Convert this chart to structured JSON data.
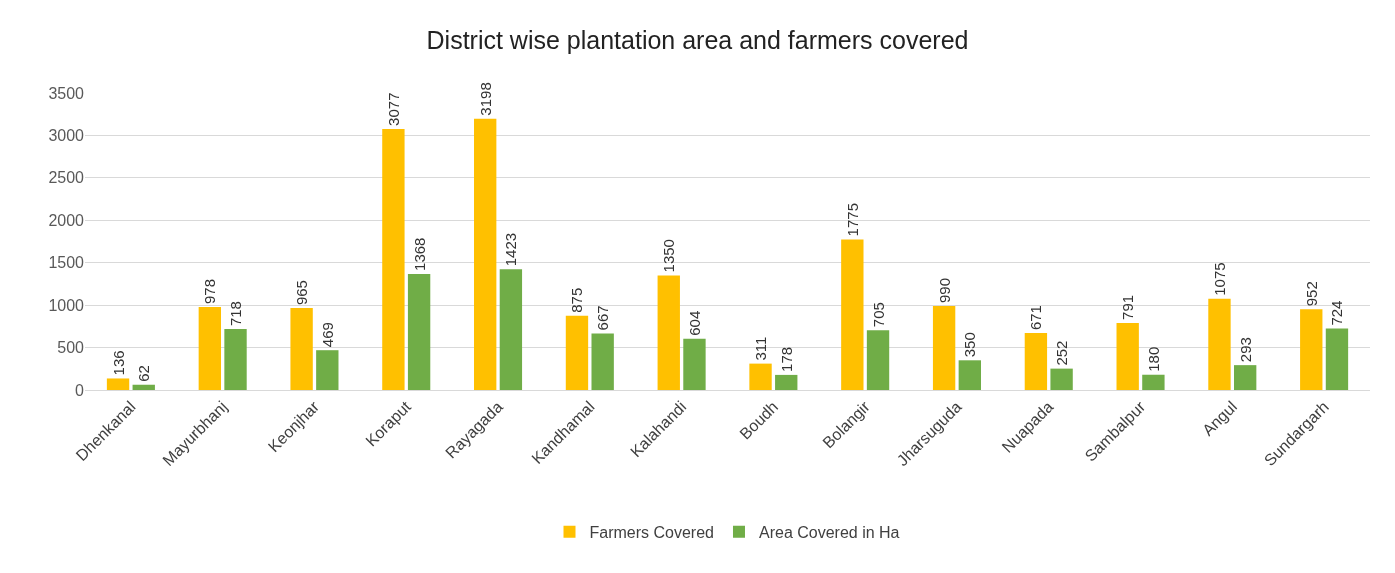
{
  "chart_data": {
    "type": "bar",
    "title": "District wise plantation area and farmers covered",
    "categories": [
      "Dhenkanal",
      "Mayurbhanj",
      "Keonjhar",
      "Koraput",
      "Rayagada",
      "Kandhamal",
      "Kalahandi",
      "Boudh",
      "Bolangir",
      "Jharsuguda",
      "Nuapada",
      "Sambalpur",
      "Angul",
      "Sundargarh"
    ],
    "series": [
      {
        "name": "Farmers Covered",
        "color": "#ffc000",
        "values": [
          136,
          978,
          965,
          3077,
          3198,
          875,
          1350,
          311,
          1775,
          990,
          671,
          791,
          1075,
          952
        ]
      },
      {
        "name": "Area Covered in Ha",
        "color": "#70ad47",
        "values": [
          62,
          718,
          469,
          1368,
          1423,
          667,
          604,
          178,
          705,
          350,
          252,
          180,
          293,
          724
        ]
      }
    ],
    "ylim": [
      0,
      3500
    ],
    "yticks": [
      0,
      500,
      1000,
      1500,
      2000,
      2500,
      3000,
      3500
    ],
    "grid": "y",
    "legend": "bottom",
    "data_labels": true
  }
}
